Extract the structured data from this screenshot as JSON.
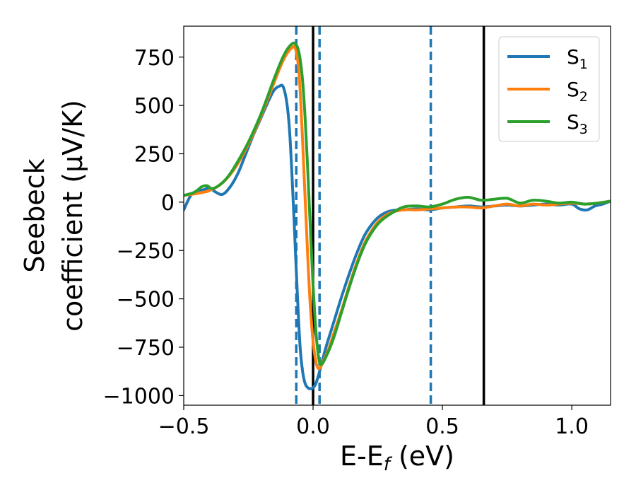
{
  "chart_data": {
    "type": "line",
    "title": "",
    "xlabel": "E-E",
    "xlabel_sub": "f",
    "xlabel_unit": " (eV)",
    "ylabel_line1": "Seebeck",
    "ylabel_line2": "coefficient  (μV/K)",
    "xlim": [
      -0.5,
      1.15
    ],
    "ylim": [
      -1050,
      910
    ],
    "xticks": [
      -0.5,
      0.0,
      0.5,
      1.0
    ],
    "xtick_labels": [
      "−0.5",
      "0.0",
      "0.5",
      "1.0"
    ],
    "yticks": [
      750,
      500,
      250,
      0,
      -250,
      -500,
      -750,
      -1000
    ],
    "ytick_labels": [
      "750",
      "500",
      "250",
      "0",
      "−250",
      "−500",
      "−750",
      "−1000"
    ],
    "legend_position": "top-right",
    "vlines_solid": [
      0.0,
      0.66
    ],
    "vlines_dashed": [
      -0.065,
      0.025,
      0.455
    ],
    "series": [
      {
        "name": "S",
        "sub": "1",
        "color": "#1f77b4",
        "x": [
          -0.5,
          -0.47,
          -0.44,
          -0.42,
          -0.4,
          -0.38,
          -0.35,
          -0.32,
          -0.29,
          -0.26,
          -0.23,
          -0.2,
          -0.17,
          -0.15,
          -0.13,
          -0.115,
          -0.1,
          -0.09,
          -0.08,
          -0.07,
          -0.06,
          -0.05,
          -0.04,
          -0.03,
          -0.02,
          -0.01,
          0.0,
          0.01,
          0.02,
          0.03,
          0.05,
          0.08,
          0.11,
          0.14,
          0.17,
          0.2,
          0.23,
          0.26,
          0.3,
          0.35,
          0.4,
          0.45,
          0.5,
          0.55,
          0.6,
          0.65,
          0.7,
          0.75,
          0.8,
          0.85,
          0.9,
          0.95,
          1.0,
          1.03,
          1.06,
          1.09,
          1.12,
          1.15
        ],
        "y": [
          -40,
          40,
          60,
          65,
          75,
          55,
          40,
          80,
          150,
          250,
          350,
          440,
          530,
          580,
          600,
          595,
          500,
          350,
          100,
          -200,
          -500,
          -750,
          -880,
          -940,
          -960,
          -965,
          -960,
          -940,
          -900,
          -850,
          -750,
          -620,
          -490,
          -370,
          -260,
          -170,
          -110,
          -70,
          -45,
          -40,
          -35,
          -40,
          -30,
          -25,
          -20,
          -25,
          -20,
          -15,
          -20,
          -15,
          -10,
          -15,
          -10,
          -35,
          -40,
          -20,
          -10,
          5
        ]
      },
      {
        "name": "S",
        "sub": "2",
        "color": "#ff7f0e",
        "x": [
          -0.5,
          -0.45,
          -0.4,
          -0.35,
          -0.3,
          -0.25,
          -0.2,
          -0.15,
          -0.12,
          -0.1,
          -0.08,
          -0.07,
          -0.06,
          -0.05,
          -0.04,
          -0.03,
          -0.02,
          -0.01,
          0.0,
          0.01,
          0.02,
          0.03,
          0.04,
          0.06,
          0.08,
          0.11,
          0.14,
          0.17,
          0.2,
          0.23,
          0.26,
          0.3,
          0.35,
          0.4,
          0.45,
          0.5,
          0.55,
          0.6,
          0.65,
          0.7,
          0.75,
          0.8,
          0.85,
          0.9,
          0.95,
          1.0,
          1.05,
          1.1,
          1.15
        ],
        "y": [
          35,
          45,
          60,
          100,
          180,
          300,
          450,
          620,
          720,
          770,
          800,
          800,
          740,
          580,
          300,
          0,
          -300,
          -550,
          -720,
          -820,
          -860,
          -850,
          -820,
          -760,
          -680,
          -560,
          -430,
          -310,
          -210,
          -140,
          -90,
          -55,
          -40,
          -40,
          -35,
          -30,
          -25,
          -25,
          -30,
          -20,
          -10,
          -20,
          -10,
          -15,
          -10,
          -5,
          -10,
          -5,
          5
        ]
      },
      {
        "name": "S",
        "sub": "3",
        "color": "#2ca02c",
        "x": [
          -0.5,
          -0.46,
          -0.43,
          -0.41,
          -0.39,
          -0.36,
          -0.33,
          -0.3,
          -0.25,
          -0.2,
          -0.15,
          -0.12,
          -0.1,
          -0.08,
          -0.07,
          -0.06,
          -0.05,
          -0.04,
          -0.03,
          -0.02,
          -0.01,
          0.0,
          0.01,
          0.02,
          0.03,
          0.05,
          0.08,
          0.11,
          0.14,
          0.17,
          0.2,
          0.23,
          0.26,
          0.3,
          0.35,
          0.4,
          0.45,
          0.5,
          0.55,
          0.6,
          0.65,
          0.7,
          0.75,
          0.8,
          0.85,
          0.9,
          0.95,
          1.0,
          1.05,
          1.1,
          1.15
        ],
        "y": [
          35,
          50,
          80,
          85,
          70,
          90,
          130,
          190,
          310,
          460,
          640,
          740,
          790,
          820,
          820,
          800,
          740,
          620,
          420,
          150,
          -150,
          -430,
          -650,
          -790,
          -840,
          -800,
          -700,
          -570,
          -440,
          -320,
          -220,
          -150,
          -100,
          -60,
          -25,
          -20,
          -25,
          -10,
          15,
          25,
          10,
          15,
          20,
          -5,
          10,
          5,
          -5,
          0,
          -10,
          -5,
          5
        ]
      }
    ]
  }
}
